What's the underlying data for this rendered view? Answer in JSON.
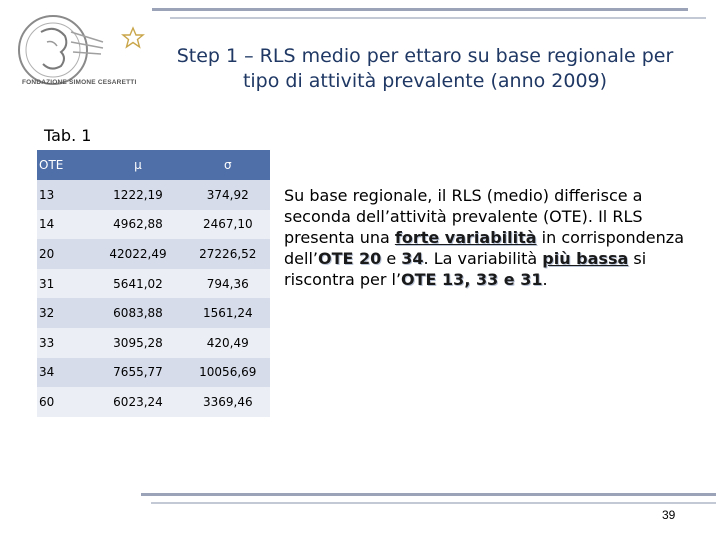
{
  "logo": {
    "label": "FONDAZIONE SIMONE CESARETTI",
    "icon": "foundation-seal-icon",
    "star_icon": "star-outline-icon"
  },
  "title": "Step 1 – RLS medio per ettaro su base regionale per tipo di attività prevalente (anno 2009)",
  "tab_label": "Tab. 1",
  "table": {
    "headers": [
      "OTE",
      "μ",
      "σ"
    ],
    "rows": [
      [
        "13",
        "1222,19",
        "374,92"
      ],
      [
        "14",
        "4962,88",
        "2467,10"
      ],
      [
        "20",
        "42022,49",
        "27226,52"
      ],
      [
        "31",
        "5641,02",
        "794,36"
      ],
      [
        "32",
        "6083,88",
        "1561,24"
      ],
      [
        "33",
        "3095,28",
        "420,49"
      ],
      [
        "34",
        "7655,77",
        "10056,69"
      ],
      [
        "60",
        "6023,24",
        "3369,46"
      ]
    ],
    "header_color": "#4f6fa8"
  },
  "paragraph": {
    "t1": "Su base regionale, il RLS (medio) differisce a seconda dell’attività prevalente (OTE). Il RLS presenta una ",
    "h1": "forte variabilità",
    "t2": " in corrispondenza dell’",
    "h2": "OTE 20",
    "t3": " e ",
    "h3": "34",
    "t4": ". La variabilità ",
    "h4": "più bassa",
    "t5": " si riscontra per l’",
    "h5": "OTE 13, 33 e 31",
    "t6": "."
  },
  "page_number": "39"
}
